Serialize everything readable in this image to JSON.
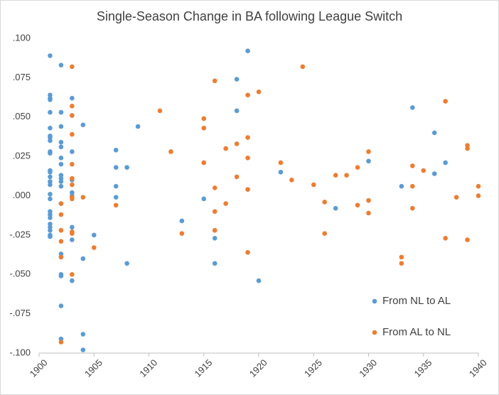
{
  "chart_data": {
    "type": "scatter",
    "title": "Single-Season Change in BA following League Switch",
    "xlim": [
      1900,
      1940
    ],
    "xticks": [
      1900,
      1905,
      1910,
      1915,
      1920,
      1925,
      1930,
      1935,
      1940
    ],
    "ylim": [
      -0.1,
      0.1
    ],
    "yticks": [
      {
        "value": -0.1,
        "label": "-.100"
      },
      {
        "value": -0.075,
        "label": "-.075"
      },
      {
        "value": -0.05,
        "label": "-.050"
      },
      {
        "value": -0.025,
        "label": "-.025"
      },
      {
        "value": 0,
        "label": ".000"
      },
      {
        "value": 0.025,
        "label": ".025"
      },
      {
        "value": 0.05,
        "label": ".050"
      },
      {
        "value": 0.075,
        "label": ".075"
      },
      {
        "value": 0.1,
        "label": ".100"
      }
    ],
    "legend": "bottom-right",
    "series": [
      {
        "name": "From NL to AL",
        "color": "#5b9bd5",
        "x": [
          1901,
          1901,
          1901,
          1901,
          1901,
          1901,
          1901,
          1901,
          1901,
          1901,
          1901,
          1901,
          1901,
          1901,
          1901,
          1901,
          1901,
          1901,
          1901,
          1901,
          1901,
          1901,
          1901,
          1901,
          1901,
          1901,
          1902,
          1902,
          1902,
          1902,
          1902,
          1902,
          1902,
          1902,
          1902,
          1902,
          1902,
          1902,
          1902,
          1902,
          1902,
          1902,
          1902,
          1902,
          1903,
          1903,
          1903,
          1903,
          1903,
          1903,
          1903,
          1903,
          1903,
          1903,
          1904,
          1904,
          1904,
          1904,
          1905,
          1907,
          1907,
          1907,
          1907,
          1908,
          1908,
          1909,
          1913,
          1915,
          1916,
          1916,
          1918,
          1918,
          1919,
          1920,
          1922,
          1927,
          1930,
          1933,
          1934,
          1936,
          1936,
          1937
        ],
        "values": [
          0.089,
          0.064,
          0.062,
          0.061,
          0.053,
          0.043,
          0.038,
          0.037,
          0.035,
          0.028,
          0.027,
          0.016,
          0.015,
          0.012,
          0.009,
          0.007,
          0.001,
          -0.002,
          -0.01,
          -0.012,
          -0.014,
          -0.018,
          -0.02,
          -0.022,
          -0.025,
          -0.026,
          0.083,
          0.053,
          0.044,
          0.034,
          0.031,
          0.024,
          0.02,
          0.013,
          0.011,
          0.009,
          0.006,
          -0.005,
          -0.037,
          -0.039,
          -0.05,
          -0.051,
          -0.07,
          -0.091,
          0.062,
          0.051,
          0.028,
          0.01,
          0.002,
          0,
          -0.02,
          -0.023,
          -0.028,
          -0.054,
          0.045,
          -0.04,
          -0.088,
          -0.098,
          -0.025,
          0.029,
          0.018,
          0.006,
          -0.001,
          0.018,
          -0.043,
          0.044,
          -0.016,
          -0.002,
          -0.027,
          -0.043,
          0.074,
          0.054,
          0.092,
          -0.054,
          0.015,
          -0.008,
          0.022,
          0.006,
          0.056,
          0.014,
          0.04,
          0.021
        ]
      },
      {
        "name": "From AL to NL",
        "color": "#ed7d31",
        "x": [
          1902,
          1902,
          1902,
          1902,
          1902,
          1902,
          1903,
          1903,
          1903,
          1903,
          1903,
          1903,
          1903,
          1903,
          1903,
          1903,
          1903,
          1903,
          1904,
          1905,
          1907,
          1911,
          1912,
          1913,
          1915,
          1915,
          1915,
          1916,
          1916,
          1916,
          1916,
          1917,
          1917,
          1918,
          1918,
          1919,
          1919,
          1919,
          1919,
          1919,
          1920,
          1922,
          1923,
          1924,
          1925,
          1926,
          1926,
          1927,
          1928,
          1929,
          1929,
          1930,
          1930,
          1930,
          1933,
          1933,
          1934,
          1934,
          1934,
          1935,
          1937,
          1937,
          1938,
          1939,
          1939,
          1939,
          1940,
          1940
        ],
        "values": [
          -0.005,
          -0.012,
          -0.022,
          -0.029,
          -0.039,
          -0.093,
          0.082,
          0.057,
          0.051,
          0.039,
          0.02,
          0.011,
          0.007,
          -0.001,
          -0.002,
          -0.023,
          -0.024,
          -0.05,
          -0.001,
          -0.033,
          -0.006,
          0.054,
          0.028,
          -0.024,
          0.049,
          0.043,
          0.021,
          0.073,
          0.005,
          -0.01,
          -0.022,
          0.03,
          -0.005,
          0.033,
          0.012,
          0.064,
          0.037,
          0.024,
          0.004,
          -0.036,
          0.066,
          0.021,
          0.01,
          0.082,
          0.007,
          -0.004,
          -0.024,
          0.013,
          0.013,
          0.018,
          -0.006,
          0.028,
          -0.003,
          -0.011,
          -0.039,
          -0.043,
          0.019,
          0.006,
          -0.008,
          0.016,
          0.06,
          -0.027,
          -0.001,
          0.032,
          0.03,
          -0.028,
          0.006,
          0
        ]
      }
    ]
  }
}
